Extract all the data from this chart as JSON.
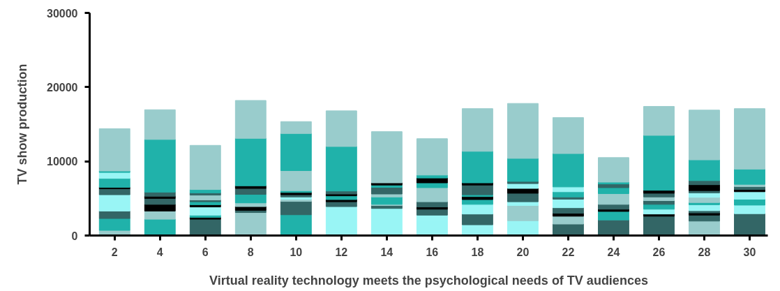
{
  "chart_data": {
    "type": "bar",
    "stacked": true,
    "xlabel": "Virtual reality technology meets the psychological needs of TV audiences",
    "ylabel": "TV show production",
    "x": [
      2,
      4,
      6,
      8,
      10,
      12,
      14,
      16,
      18,
      20,
      22,
      24,
      26,
      28,
      30
    ],
    "xlim": [
      0.9,
      30.8
    ],
    "xticks": [
      2,
      4,
      6,
      8,
      10,
      12,
      14,
      16,
      18,
      20,
      22,
      24,
      26,
      28,
      30
    ],
    "ylim": [
      0,
      30000
    ],
    "yticks": [
      0,
      10000,
      20000,
      30000
    ],
    "grid": false,
    "series": [
      {
        "values": [
          700,
          2200,
          2200,
          3100,
          2800,
          3900,
          3650,
          2100,
          1450,
          2000,
          1550,
          2100,
          2600,
          1950,
          2950
        ],
        "colors": [
          "#99cccc",
          "#20b2aa",
          "#336666",
          "#99cccc",
          "#20b2aa",
          "#99f5f5",
          "#99f5f5",
          "#99f5f5",
          "#99f5f5",
          "#99f5f5",
          "#336666",
          "#336666",
          "#336666",
          "#99cccc",
          "#336666"
        ]
      },
      {
        "values": [
          1600,
          1100,
          250,
          300,
          1800,
          650,
          400,
          650,
          1450,
          2050,
          1050,
          1150,
          300,
          800,
          1150
        ],
        "colors": [
          "#20b2aa",
          "#99cccc",
          "#000000",
          "#336666",
          "#336666",
          "#336666",
          "#336666",
          "#99f5f5",
          "#336666",
          "#99cccc",
          "#99cccc",
          "#20b2aa",
          "#000000",
          "#336666",
          "#99f5f5"
        ]
      },
      {
        "values": [
          1000,
          900,
          300,
          500,
          300,
          300,
          150,
          800,
          1300,
          500,
          400,
          300,
          650,
          300,
          800
        ],
        "colors": [
          "#336666",
          "#000000",
          "#20b2aa",
          "#000000",
          "#99cccc",
          "#000000",
          "#99cccc",
          "#336666",
          "#99f5f5",
          "#99f5f5",
          "#000000",
          "#000000",
          "#99f5f5",
          "#000000",
          "#20b2aa"
        ]
      },
      {
        "values": [
          1200,
          800,
          1100,
          500,
          300,
          500,
          1000,
          300,
          650,
          500,
          750,
          650,
          650,
          300,
          1000
        ],
        "colors": [
          "#99f5f5",
          "#336666",
          "#99f5f5",
          "#99cccc",
          "#99f5f5",
          "#20b2aa",
          "#20b2aa",
          "#000000",
          "#20b2aa",
          "#336666",
          "#336666",
          "#336666",
          "#20b2aa",
          "#336666",
          "#99f5f5"
        ]
      },
      {
        "values": [
          1000,
          300,
          300,
          1150,
          300,
          250,
          400,
          700,
          400,
          650,
          1150,
          1450,
          500,
          800,
          300
        ],
        "colors": [
          "#99f5f5",
          "#000000",
          "#000000",
          "#20b2aa",
          "#336666",
          "#000000",
          "#99cccc",
          "#336666",
          "#000000",
          "#336666",
          "#99f5f5",
          "#99cccc",
          "#336666",
          "#99f5f5",
          "#000000"
        ]
      },
      {
        "values": [
          800,
          550,
          400,
          800,
          300,
          400,
          900,
          1900,
          250,
          650,
          300,
          800,
          500,
          300,
          400
        ],
        "colors": [
          "#336666",
          "#336666",
          "#20b2aa",
          "#336666",
          "#000000",
          "#336666",
          "#336666",
          "#99cccc",
          "#20b2aa",
          "#000000",
          "#336666",
          "#20b2aa",
          "#99cccc",
          "#20b2aa",
          "#336666"
        ]
      },
      {
        "values": [
          200,
          7100,
          250,
          350,
          250,
          6000,
          300,
          650,
          1300,
          650,
          700,
          500,
          500,
          700,
          300
        ],
        "colors": [
          "#000000",
          "#20b2aa",
          "#336666",
          "#000000",
          "#20b2aa",
          "#20b2aa",
          "#20b2aa",
          "#20b2aa",
          "#336666",
          "#99f5f5",
          "#20b2aa",
          "#336666",
          "#336666",
          "#99cccc",
          "#99cccc"
        ]
      },
      {
        "values": [
          1200,
          4000,
          650,
          6400,
          2700,
          4800,
          300,
          650,
          300,
          300,
          650,
          250,
          400,
          600,
          2050
        ],
        "colors": [
          "#20b2aa",
          "#99cccc",
          "#99cccc",
          "#20b2aa",
          "#99cccc",
          "#99cccc",
          "#000000",
          "#000000",
          "#000000",
          "#336666",
          "#99f5f5",
          "#20b2aa",
          "#000000",
          "#99f5f5",
          "#20b2aa"
        ]
      },
      {
        "values": [
          800,
          null,
          300,
          5100,
          5000,
          null,
          6900,
          400,
          4250,
          3100,
          4500,
          3300,
          7400,
          300,
          8150
        ],
        "colors": [
          "#99f5f5",
          null,
          "#336666",
          "#99cccc",
          "#20b2aa",
          null,
          "#99cccc",
          "#20b2aa",
          "#20b2aa",
          "#20b2aa",
          "#20b2aa",
          "#99cccc",
          "#20b2aa",
          "#336666",
          "#99cccc"
        ]
      },
      {
        "values": [
          200,
          null,
          450,
          null,
          1600,
          null,
          null,
          4900,
          5750,
          7400,
          4850,
          null,
          3900,
          800,
          null
        ],
        "colors": [
          "#20b2aa",
          null,
          "#20b2aa",
          null,
          "#99cccc",
          null,
          null,
          "#99cccc",
          "#99cccc",
          "#99cccc",
          "#99cccc",
          null,
          "#99cccc",
          "#000000",
          null
        ]
      },
      {
        "values": [
          5700,
          null,
          5950,
          null,
          null,
          null,
          null,
          null,
          null,
          null,
          null,
          null,
          null,
          550,
          null
        ],
        "colors": [
          "#99cccc",
          null,
          "#99cccc",
          null,
          null,
          null,
          null,
          null,
          null,
          null,
          null,
          null,
          null,
          "#336666",
          null
        ]
      },
      {
        "values": [
          null,
          null,
          null,
          null,
          null,
          null,
          null,
          null,
          null,
          null,
          null,
          null,
          null,
          2800,
          null
        ],
        "colors": [
          null,
          null,
          null,
          null,
          null,
          null,
          null,
          null,
          null,
          null,
          null,
          null,
          null,
          "#20b2aa",
          null
        ]
      },
      {
        "values": [
          null,
          null,
          null,
          null,
          null,
          null,
          null,
          null,
          null,
          null,
          null,
          null,
          null,
          6700,
          null
        ],
        "colors": [
          null,
          null,
          null,
          null,
          null,
          null,
          null,
          null,
          null,
          null,
          null,
          null,
          null,
          "#99cccc",
          null
        ]
      }
    ]
  }
}
